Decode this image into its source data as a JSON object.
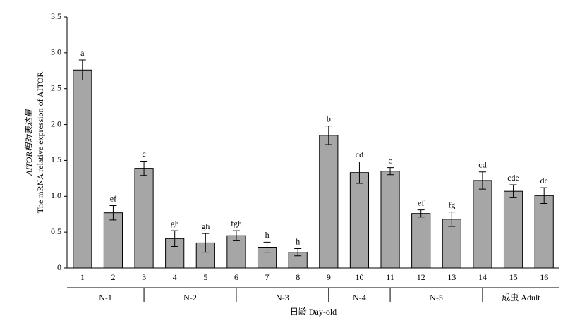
{
  "chart_data": {
    "type": "bar",
    "y_label_lines": [
      "AITOR相对表达量",
      "The mRNA relative expression of AITOR"
    ],
    "x_label": "日龄 Day-old",
    "categories": [
      "1",
      "2",
      "3",
      "4",
      "5",
      "6",
      "7",
      "8",
      "9",
      "10",
      "11",
      "12",
      "13",
      "14",
      "15",
      "16"
    ],
    "values": [
      2.76,
      0.77,
      1.39,
      0.41,
      0.35,
      0.45,
      0.29,
      0.22,
      1.85,
      1.33,
      1.35,
      0.76,
      0.68,
      1.22,
      1.07,
      1.01
    ],
    "errors": [
      0.14,
      0.1,
      0.1,
      0.11,
      0.13,
      0.07,
      0.07,
      0.05,
      0.13,
      0.15,
      0.05,
      0.05,
      0.1,
      0.12,
      0.09,
      0.11
    ],
    "letters": [
      "a",
      "ef",
      "c",
      "gh",
      "gh",
      "fgh",
      "h",
      "h",
      "b",
      "cd",
      "c",
      "ef",
      "fg",
      "cd",
      "cde",
      "de"
    ],
    "groups": [
      "N-1",
      "N-2",
      "N-3",
      "N-4",
      "N-5",
      "成虫 Adult"
    ],
    "color": "#a6a6a6",
    "ylim": [
      0,
      3.5
    ],
    "yticks": [
      0,
      0.5,
      {
        "value": 1,
        "label": "1.0"
      },
      1.5,
      {
        "value": 2,
        "label": "2.0"
      },
      2.5,
      {
        "value": 3,
        "label": "3.0"
      },
      3.5
    ]
  }
}
